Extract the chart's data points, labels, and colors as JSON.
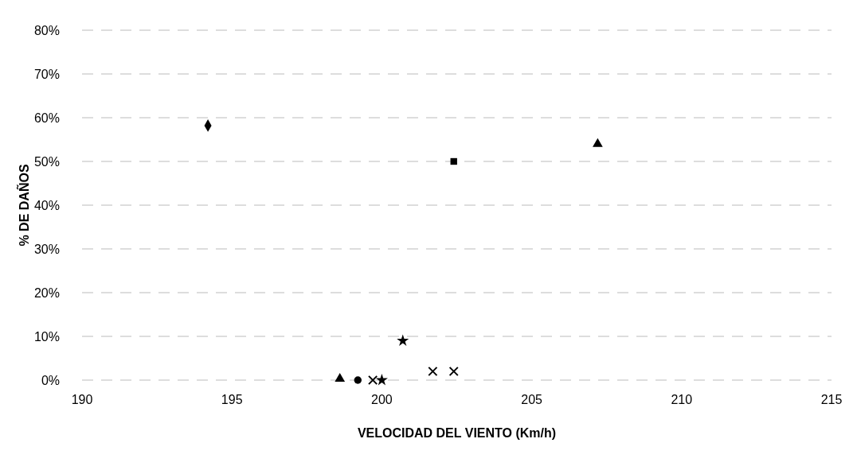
{
  "chart_data": {
    "type": "scatter",
    "xlabel": "VELOCIDAD DEL VIENTO (Km/h)",
    "ylabel": "% DE DAÑOS",
    "xlim": [
      190,
      215
    ],
    "xticks": [
      190,
      195,
      200,
      205,
      210,
      215
    ],
    "ylim": [
      0,
      80
    ],
    "yticks": [
      {
        "value": 0,
        "label": "0%"
      },
      {
        "value": 10,
        "label": "10%"
      },
      {
        "value": 20,
        "label": "20%"
      },
      {
        "value": 30,
        "label": "30%"
      },
      {
        "value": 40,
        "label": "40%"
      },
      {
        "value": 50,
        "label": "50%"
      },
      {
        "value": 60,
        "label": "60%"
      },
      {
        "value": 70,
        "label": "70%"
      },
      {
        "value": 80,
        "label": "80%"
      }
    ],
    "grid": "y",
    "series": [
      {
        "color": "#000000",
        "marker": "diamond",
        "x": [
          194.2
        ],
        "values": [
          58.2
        ]
      },
      {
        "color": "#000000",
        "marker": "triangle",
        "x": [
          207.2
        ],
        "values": [
          54
        ]
      },
      {
        "color": "#000000",
        "marker": "square",
        "x": [
          202.4
        ],
        "values": [
          50
        ]
      },
      {
        "color": "#000000",
        "marker": "star",
        "x": [
          200.7
        ],
        "values": [
          9
        ]
      },
      {
        "color": "#000000",
        "marker": "cross",
        "x": [
          201.7
        ],
        "values": [
          2
        ]
      },
      {
        "color": "#000000",
        "marker": "cross",
        "x": [
          202.4
        ],
        "values": [
          2
        ]
      },
      {
        "color": "#000000",
        "marker": "triangle",
        "x": [
          198.6
        ],
        "values": [
          0.3
        ]
      },
      {
        "color": "#000000",
        "marker": "circle",
        "x": [
          199.2
        ],
        "values": [
          0
        ]
      },
      {
        "color": "#000000",
        "marker": "cross",
        "x": [
          199.7
        ],
        "values": [
          0
        ]
      },
      {
        "color": "#000000",
        "marker": "star",
        "x": [
          200.0
        ],
        "values": [
          0
        ]
      }
    ]
  }
}
